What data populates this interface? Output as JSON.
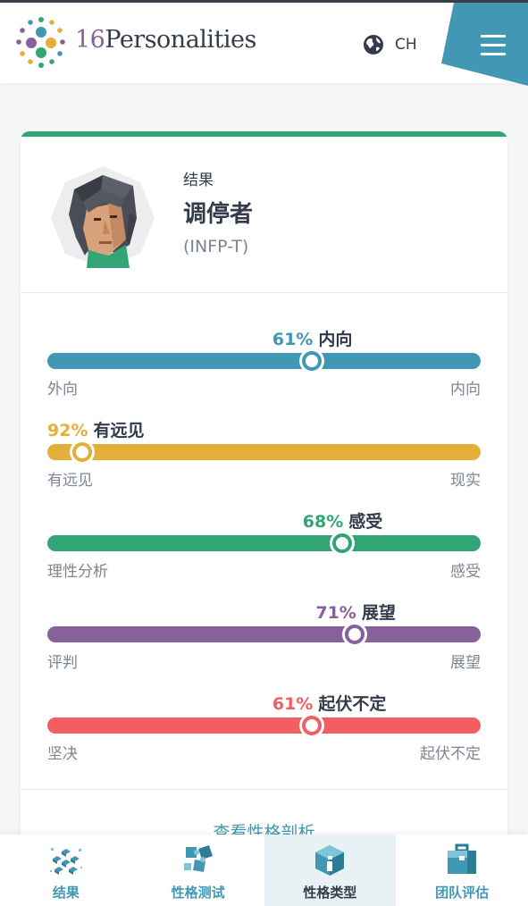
{
  "header": {
    "brand_number": "16",
    "brand_name": "Personalities",
    "language": "CH",
    "colors": {
      "accent": "#4298b4",
      "brand_purple": "#88619a",
      "brand_yellow": "#e4ae3a",
      "brand_green": "#33a474"
    }
  },
  "result": {
    "label": "结果",
    "type_name": "调停者",
    "type_code": "(INFP-T)",
    "accent_color": "#33a474"
  },
  "traits": [
    {
      "percent": "61%",
      "name": "内向",
      "left_label": "外向",
      "right_label": "内向",
      "color": "#4298b4",
      "fraction": 0.61
    },
    {
      "percent": "92%",
      "name": "有远见",
      "left_label": "有远见",
      "right_label": "现实",
      "color": "#e4ae3a",
      "fraction": 0.08
    },
    {
      "percent": "68%",
      "name": "感受",
      "left_label": "理性分析",
      "right_label": "感受",
      "color": "#33a474",
      "fraction": 0.68
    },
    {
      "percent": "71%",
      "name": "展望",
      "left_label": "评判",
      "right_label": "展望",
      "color": "#88619a",
      "fraction": 0.71
    },
    {
      "percent": "61%",
      "name": "起伏不定",
      "left_label": "坚决",
      "right_label": "起伏不定",
      "color": "#f25e62",
      "fraction": 0.61
    }
  ],
  "see_more": "查看性格剖析",
  "bottom_nav": [
    {
      "label": "结果",
      "icon": "molecule-icon",
      "active": false
    },
    {
      "label": "性格测试",
      "icon": "puzzle-icon",
      "active": false
    },
    {
      "label": "性格类型",
      "icon": "info-cube-icon",
      "active": true
    },
    {
      "label": "团队评估",
      "icon": "briefcase-icon",
      "active": false
    }
  ]
}
